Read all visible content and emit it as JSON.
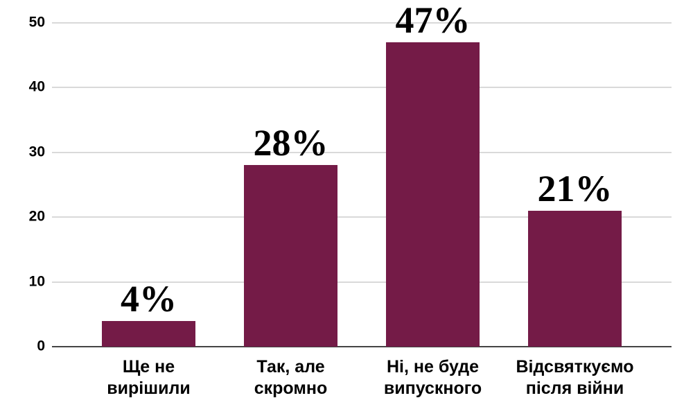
{
  "chart_data": {
    "type": "bar",
    "title": "",
    "xlabel": "",
    "ylabel": "",
    "categories": [
      "Ще не\nвирішили",
      "Так, але\nскромно",
      "Ні, не буде\nвипускного",
      "Відсвяткуємо\nпісля війни"
    ],
    "values": [
      4,
      28,
      47,
      21
    ],
    "data_labels": [
      "4%",
      "28%",
      "47%",
      "21%"
    ],
    "yticks": [
      0,
      10,
      20,
      30,
      40,
      50
    ],
    "ylim": [
      0,
      50
    ],
    "grid": true,
    "legend": "none",
    "colors": {
      "bar": "#741B47",
      "gridline": "#d9d9d9",
      "axis_line": "#444444",
      "text": "#000000",
      "background": "#ffffff"
    }
  }
}
